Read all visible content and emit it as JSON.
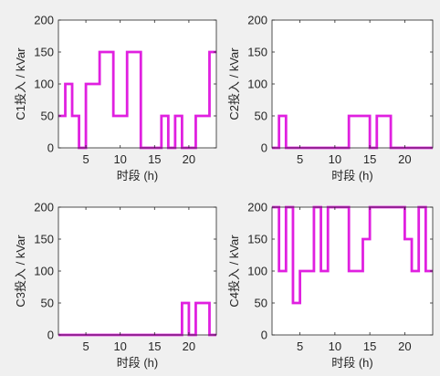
{
  "chart_data": [
    {
      "type": "line",
      "step": true,
      "xlabel": "时段 (h)",
      "ylabel": "C1投入 / kVar",
      "xlim": [
        1,
        24
      ],
      "ylim": [
        0,
        200
      ],
      "xticks": [
        5,
        10,
        15,
        20
      ],
      "yticks": [
        0,
        50,
        100,
        150,
        200
      ],
      "color": "#e020e0",
      "series": [
        {
          "x": [
            1,
            2,
            3,
            4,
            5,
            6,
            7,
            8,
            9,
            10,
            11,
            12,
            13,
            14,
            15,
            16,
            17,
            18,
            19,
            20,
            21,
            22,
            23,
            24
          ],
          "values": [
            50,
            100,
            50,
            0,
            100,
            100,
            150,
            150,
            50,
            50,
            150,
            150,
            0,
            0,
            0,
            50,
            0,
            50,
            0,
            0,
            50,
            50,
            150,
            150
          ]
        }
      ]
    },
    {
      "type": "line",
      "step": true,
      "xlabel": "时段 (h)",
      "ylabel": "C2投入 / kVar",
      "xlim": [
        1,
        24
      ],
      "ylim": [
        0,
        200
      ],
      "xticks": [
        5,
        10,
        15,
        20
      ],
      "yticks": [
        0,
        50,
        100,
        150,
        200
      ],
      "color": "#e020e0",
      "series": [
        {
          "x": [
            1,
            2,
            3,
            4,
            5,
            6,
            7,
            8,
            9,
            10,
            11,
            12,
            13,
            14,
            15,
            16,
            17,
            18,
            19,
            20,
            21,
            22,
            23,
            24
          ],
          "values": [
            0,
            50,
            0,
            0,
            0,
            0,
            0,
            0,
            0,
            0,
            0,
            50,
            50,
            50,
            0,
            50,
            50,
            0,
            0,
            0,
            0,
            0,
            0,
            0
          ]
        }
      ]
    },
    {
      "type": "line",
      "step": true,
      "xlabel": "时段 (h)",
      "ylabel": "C3投入 / kVar",
      "xlim": [
        1,
        24
      ],
      "ylim": [
        0,
        200
      ],
      "xticks": [
        5,
        10,
        15,
        20
      ],
      "yticks": [
        0,
        50,
        100,
        150,
        200
      ],
      "color": "#e020e0",
      "series": [
        {
          "x": [
            1,
            2,
            3,
            4,
            5,
            6,
            7,
            8,
            9,
            10,
            11,
            12,
            13,
            14,
            15,
            16,
            17,
            18,
            19,
            20,
            21,
            22,
            23,
            24
          ],
          "values": [
            0,
            0,
            0,
            0,
            0,
            0,
            0,
            0,
            0,
            0,
            0,
            0,
            0,
            0,
            0,
            0,
            0,
            0,
            50,
            0,
            50,
            50,
            0,
            0
          ]
        }
      ]
    },
    {
      "type": "line",
      "step": true,
      "xlabel": "时段 (h)",
      "ylabel": "C4投入 / kVar",
      "xlim": [
        1,
        24
      ],
      "ylim": [
        0,
        200
      ],
      "xticks": [
        5,
        10,
        15,
        20
      ],
      "yticks": [
        0,
        50,
        100,
        150,
        200
      ],
      "color": "#e020e0",
      "series": [
        {
          "x": [
            1,
            2,
            3,
            4,
            5,
            6,
            7,
            8,
            9,
            10,
            11,
            12,
            13,
            14,
            15,
            16,
            17,
            18,
            19,
            20,
            21,
            22,
            23,
            24
          ],
          "values": [
            200,
            100,
            200,
            50,
            100,
            100,
            200,
            100,
            200,
            200,
            200,
            100,
            100,
            150,
            200,
            200,
            200,
            200,
            200,
            150,
            100,
            200,
            100,
            100
          ]
        }
      ]
    }
  ]
}
